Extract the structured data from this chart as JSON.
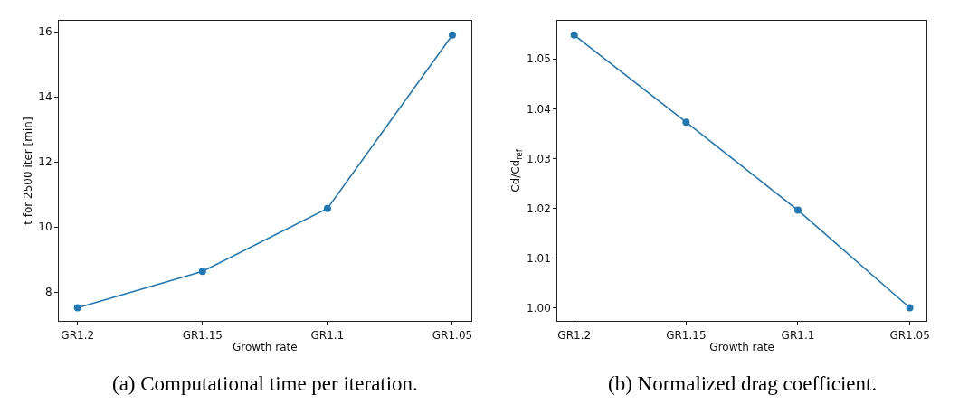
{
  "chart_data": [
    {
      "type": "line",
      "categories": [
        "GR1.2",
        "GR1.15",
        "GR1.1",
        "GR1.05"
      ],
      "xlabel": "Growth rate",
      "ylabel": "t for 2500 iter [min]",
      "ylim": [
        7.11,
        16.34
      ],
      "yticks": [
        8,
        10,
        12,
        14,
        16
      ],
      "marker": "circle",
      "line_style": "solid",
      "series": [
        {
          "color": "#1f77b4",
          "values": [
            7.52,
            8.64,
            10.57,
            15.9
          ]
        }
      ],
      "annotations": [
        "(a) Computational time per iteration."
      ]
    },
    {
      "type": "line",
      "categories": [
        "GR1.2",
        "GR1.15",
        "GR1.1",
        "GR1.05"
      ],
      "xlabel": "Growth rate",
      "ylabel": "Cd/Cd$_{ref}$",
      "ylim": [
        0.9973,
        1.0577
      ],
      "yticks": [
        {
          "value": 1.0,
          "label": "1.00"
        },
        {
          "value": 1.01,
          "label": "1.01"
        },
        {
          "value": 1.02,
          "label": "1.02"
        },
        {
          "value": 1.03,
          "label": "1.03"
        },
        {
          "value": 1.04,
          "label": "1.04"
        },
        {
          "value": 1.05,
          "label": "1.05"
        }
      ],
      "marker": "circle",
      "line_style": "solid",
      "series": [
        {
          "color": "#1f77b4",
          "values": [
            1.0548,
            1.0373,
            1.0196,
            1.0
          ]
        }
      ],
      "annotations": [
        "(b) Normalized drag coefficient."
      ]
    }
  ]
}
